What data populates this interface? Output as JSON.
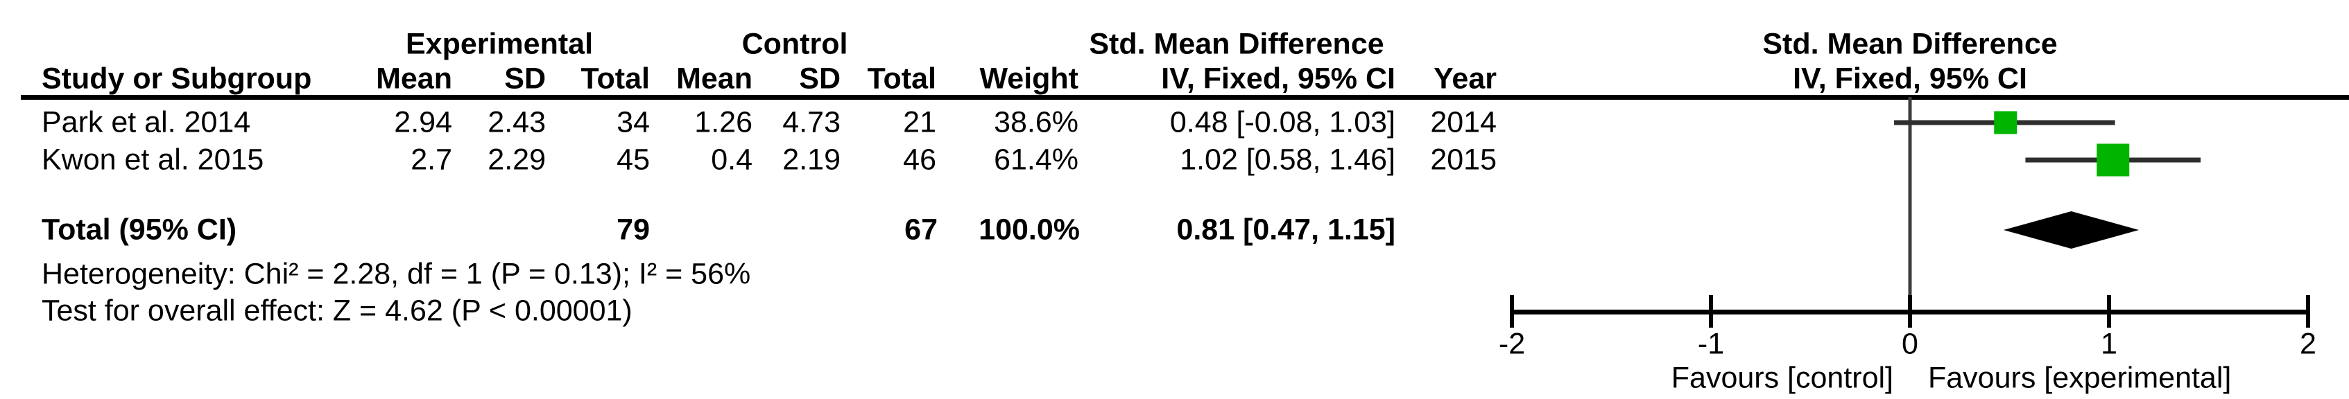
{
  "headers": {
    "experimental_group": "Experimental",
    "control_group": "Control",
    "smd_table": "Std. Mean Difference",
    "plot_title": "Std. Mean Difference",
    "plot_subtitle": "IV, Fixed, 95% CI"
  },
  "columns": {
    "study": "Study or Subgroup",
    "mean_e": "Mean",
    "sd_e": "SD",
    "total_e": "Total",
    "mean_c": "Mean",
    "sd_c": "SD",
    "total_c": "Total",
    "weight": "Weight",
    "ci": "IV, Fixed, 95% CI",
    "year": "Year"
  },
  "rows": [
    {
      "study": "Park et al. 2014",
      "mean_e": "2.94",
      "sd_e": "2.43",
      "total_e": "34",
      "mean_c": "1.26",
      "sd_c": "4.73",
      "total_c": "21",
      "weight": "38.6%",
      "ci": "0.48 [-0.08, 1.03]",
      "year": "2014"
    },
    {
      "study": "Kwon et al. 2015",
      "mean_e": "2.7",
      "sd_e": "2.29",
      "total_e": "45",
      "mean_c": "0.4",
      "sd_c": "2.19",
      "total_c": "46",
      "weight": "61.4%",
      "ci": "1.02 [0.58, 1.46]",
      "year": "2015"
    }
  ],
  "total_row": {
    "label": "Total (95% CI)",
    "total_e": "79",
    "total_c": "67",
    "weight": "100.0%",
    "ci": "0.81 [0.47, 1.15]"
  },
  "footnotes": [
    "Heterogeneity: Chi² = 2.28, df = 1 (P = 0.13); I² = 56%",
    "Test for overall effect: Z = 4.62 (P < 0.00001)"
  ],
  "axis": {
    "tick_labels": [
      "-2",
      "-1",
      "0",
      "1",
      "2"
    ],
    "tick_values": [
      -2,
      -1,
      0,
      1,
      2
    ],
    "favours_left": "Favours [control]",
    "favours_right": "Favours [experimental]"
  },
  "colors": {
    "marker_green": "#00b400",
    "ci_line": "#2e2e2e",
    "zero_line": "#3c3c3c",
    "axis_black": "#000000",
    "diamond_black": "#000000"
  },
  "chart_data": {
    "type": "forest",
    "effect_measure": "Std. Mean Difference",
    "model": "IV, Fixed, 95% CI",
    "xlim": [
      -2,
      2
    ],
    "studies": [
      {
        "name": "Park et al. 2014",
        "effect": 0.48,
        "ci_low": -0.08,
        "ci_high": 1.03,
        "weight_pct": 38.6,
        "year": 2014,
        "experimental": {
          "mean": 2.94,
          "sd": 2.43,
          "total": 34
        },
        "control": {
          "mean": 1.26,
          "sd": 4.73,
          "total": 21
        }
      },
      {
        "name": "Kwon et al. 2015",
        "effect": 1.02,
        "ci_low": 0.58,
        "ci_high": 1.46,
        "weight_pct": 61.4,
        "year": 2015,
        "experimental": {
          "mean": 2.7,
          "sd": 2.29,
          "total": 45
        },
        "control": {
          "mean": 0.4,
          "sd": 2.19,
          "total": 46
        }
      }
    ],
    "total": {
      "effect": 0.81,
      "ci_low": 0.47,
      "ci_high": 1.15,
      "total_e": 79,
      "total_c": 67,
      "weight_pct": 100.0
    },
    "heterogeneity": {
      "chi2": 2.28,
      "df": 1,
      "p": 0.13,
      "i2_pct": 56
    },
    "overall_effect": {
      "z": 4.62,
      "p": "< 0.00001"
    },
    "favours": [
      "Favours [control]",
      "Favours [experimental]"
    ]
  }
}
